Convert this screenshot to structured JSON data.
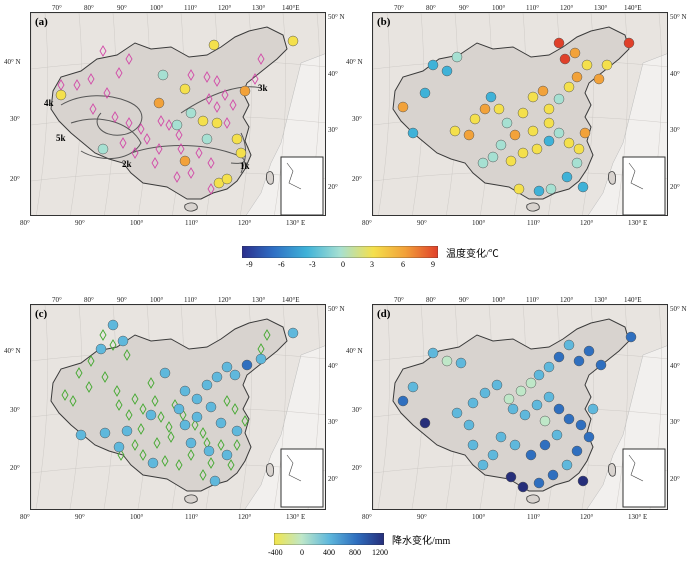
{
  "panels": {
    "a": {
      "label": "(a)"
    },
    "b": {
      "label": "(b)"
    },
    "c": {
      "label": "(c)"
    },
    "d": {
      "label": "(d)"
    }
  },
  "ticks": {
    "top": [
      "70°",
      "80°",
      "90°",
      "100°",
      "110°",
      "120°",
      "130°",
      "140°E"
    ],
    "right_top": "50° N",
    "left": [
      "40° N",
      "30°",
      "20°"
    ],
    "right": [
      "40°",
      "30°",
      "20°"
    ],
    "bottom": [
      "80°",
      "90°",
      "100°",
      "110°",
      "120°",
      "130° E"
    ]
  },
  "contours": {
    "k4": "4k",
    "k5": "5k",
    "k2": "2k",
    "k3": "3k",
    "k1": "1k"
  },
  "temp_colorbar": {
    "title": "温度变化/℃",
    "ticks": [
      "-9",
      "-6",
      "-3",
      "0",
      "3",
      "6",
      "9"
    ],
    "colors": [
      "#2b2f8c",
      "#2f6fc4",
      "#3fb2d8",
      "#a6e0d2",
      "#f4e04c",
      "#f2a23a",
      "#e0402a"
    ]
  },
  "precip_colorbar": {
    "title": "降水变化/mm",
    "ticks": [
      "-400",
      "0",
      "400",
      "800",
      "1200"
    ],
    "colors": [
      "#f2e54a",
      "#bfe7c8",
      "#5fb8dc",
      "#2f6fbf",
      "#262e7a"
    ]
  },
  "colors": {
    "land": "#e8e4e0",
    "china": "#d8d3cf",
    "border": "#3a3a3a",
    "diamond_pink": "#d24aa8",
    "diamond_green": "#43a82f"
  }
}
